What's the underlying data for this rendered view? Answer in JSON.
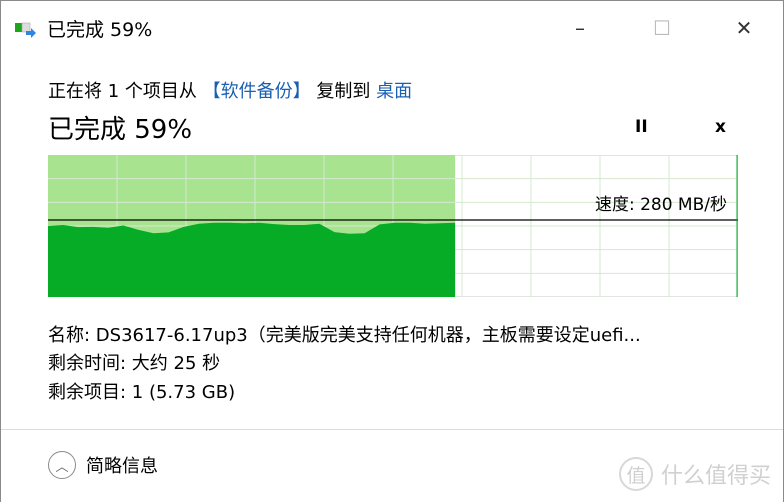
{
  "window": {
    "title": "已完成 59%",
    "minimize": "–",
    "maximize": "☐",
    "close": "✕"
  },
  "description": {
    "prefix": "正在将 1 个项目从 ",
    "source": "【软件备份】",
    "middle": " 复制到 ",
    "destination": "桌面"
  },
  "progress": {
    "label": "已完成 59%",
    "percent": 59,
    "pause": "II",
    "cancel": "x"
  },
  "speed": {
    "label": "速度: 280 MB/秒",
    "current_mb_s": 280,
    "samples_mb_s": [
      258,
      262,
      254,
      255,
      252,
      260,
      244,
      232,
      235,
      255,
      266,
      270,
      270,
      268,
      270,
      265,
      262,
      262,
      266,
      236,
      230,
      232,
      264,
      270,
      270,
      266,
      268,
      270
    ]
  },
  "colors": {
    "done": "#a8e48f",
    "speed_fill": "#06ab26",
    "grid": "#d4e8d0"
  },
  "details": {
    "name": "名称: DS3617-6.17up3（完美版完美支持任何机器，主板需要设定uefi...",
    "time_left": "剩余时间: 大约 25 秒",
    "items_left": "剩余项目: 1 (5.73 GB)"
  },
  "footer": {
    "toggle_icon": "chevron-up-icon",
    "label": "简略信息"
  },
  "watermark": {
    "logo": "值",
    "text": "什么值得买"
  }
}
